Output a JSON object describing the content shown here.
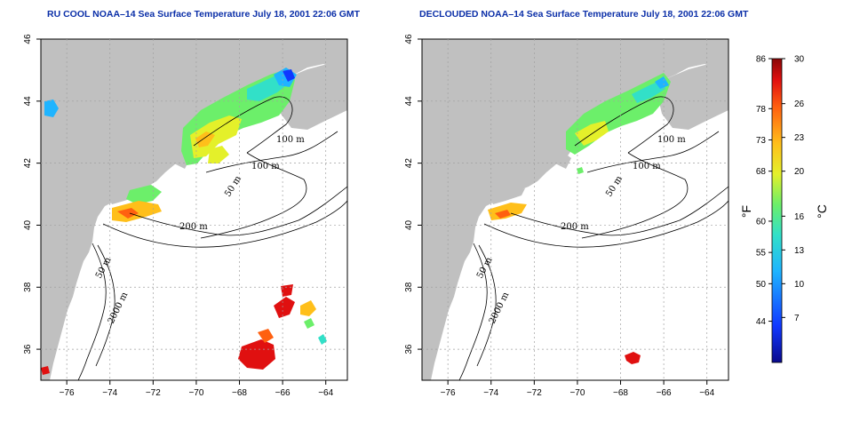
{
  "panels": [
    {
      "id": "left",
      "title": "RU COOL NOAA–14 Sea Surface Temperature July 18, 2001 22:06 GMT",
      "contour_labels": [
        "100 m",
        "100 m",
        "50 m",
        "200 m",
        "50 m",
        "2000 m"
      ],
      "variant": "raw"
    },
    {
      "id": "right",
      "title": "DECLOUDED NOAA–14 Sea Surface Temperature July 18, 2001 22:06 GMT",
      "contour_labels": [
        "100 m",
        "100 m",
        "50 m",
        "200 m",
        "50 m",
        "2000 m"
      ],
      "variant": "declouded"
    }
  ],
  "axes": {
    "lon_range": [
      -77.2,
      -63.0
    ],
    "lat_range": [
      35.0,
      46.0
    ],
    "x_ticks": [
      "−76",
      "−74",
      "−72",
      "−70",
      "−68",
      "−66",
      "−64"
    ],
    "x_tick_values": [
      -76,
      -74,
      -72,
      -70,
      -68,
      -66,
      -64
    ],
    "y_ticks": [
      "36",
      "38",
      "40",
      "42",
      "44",
      "46"
    ],
    "y_tick_values": [
      36,
      38,
      40,
      42,
      44,
      46
    ]
  },
  "colorbar": {
    "fahrenheit_labels": [
      "86",
      "78",
      "73",
      "68",
      "60",
      "55",
      "50",
      "44"
    ],
    "fahrenheit_values": [
      86,
      78,
      73,
      68,
      60,
      55,
      50,
      44
    ],
    "celsius_labels": [
      "30",
      "26",
      "23",
      "20",
      "16",
      "13",
      "10",
      "7"
    ],
    "celsius_values": [
      30,
      26,
      23,
      20,
      16,
      13,
      10,
      7
    ],
    "range_c": [
      3,
      30
    ],
    "left_unit": "°F",
    "right_unit": "°C"
  },
  "colors": {
    "land": "#c0c0c0",
    "ocean": "#ffffff",
    "title": "#0b2fa8",
    "grid": "#a0a0a0"
  }
}
